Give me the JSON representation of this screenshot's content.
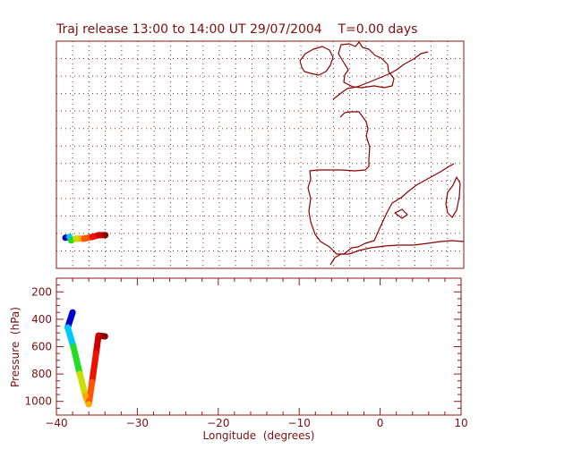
{
  "title": "Traj release 13:00 to 14:00 UT 29/07/2004    T=0.00 days",
  "colors": {
    "frame": "#8b1a1a",
    "coast": "#8b0000",
    "grid": "#8b2a2a",
    "text": "#7a1010"
  },
  "map": {
    "lon_range": [
      -40,
      10
    ],
    "lat_range": [
      34,
      60
    ],
    "grid_step_deg": 2
  },
  "trajectory": {
    "colormap": [
      "#0000cc",
      "#00c8ff",
      "#22dd22",
      "#ccdd00",
      "#ffaa00",
      "#ff5500",
      "#ee1100",
      "#cc0000",
      "#8b0000"
    ],
    "points_map": [
      {
        "lon": -38.9,
        "lat": 37.5
      },
      {
        "lon": -38.4,
        "lat": 37.6
      },
      {
        "lon": -38.2,
        "lat": 37.2
      },
      {
        "lon": -37.6,
        "lat": 37.4
      },
      {
        "lon": -36.6,
        "lat": 37.4
      },
      {
        "lon": -35.6,
        "lat": 37.6
      },
      {
        "lon": -34.8,
        "lat": 37.8
      },
      {
        "lon": -34.0,
        "lat": 37.8
      }
    ]
  },
  "profile": {
    "xlabel": "Longitude  (degrees)",
    "ylabel": "Pressure  (hPa)",
    "xlim": [
      -40,
      10
    ],
    "ylim": [
      1100,
      100
    ],
    "xticks": [
      -40,
      -30,
      -20,
      -10,
      0,
      10
    ],
    "yticks": [
      200,
      400,
      600,
      800,
      1000
    ],
    "points": [
      {
        "lon": -38.0,
        "p": 350
      },
      {
        "lon": -38.6,
        "p": 460
      },
      {
        "lon": -37.9,
        "p": 600
      },
      {
        "lon": -37.1,
        "p": 800
      },
      {
        "lon": -36.4,
        "p": 960
      },
      {
        "lon": -36.0,
        "p": 1020
      },
      {
        "lon": -35.6,
        "p": 860
      },
      {
        "lon": -35.1,
        "p": 650
      },
      {
        "lon": -34.8,
        "p": 520
      },
      {
        "lon": -34.0,
        "p": 525
      }
    ]
  }
}
